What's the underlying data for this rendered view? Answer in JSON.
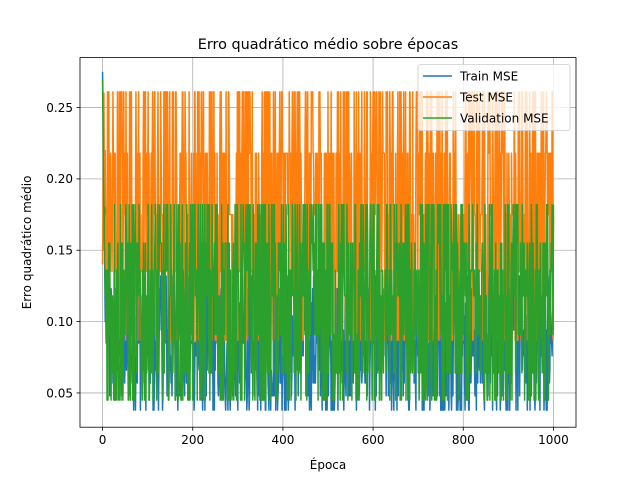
{
  "chart_data": {
    "type": "line",
    "title": "Erro quadrático médio sobre épocas",
    "xlabel": "Época",
    "ylabel": "Erro quadrático médio",
    "xlim": [
      -50,
      1050
    ],
    "ylim": [
      0.026,
      0.285
    ],
    "x_ticks": [
      0,
      200,
      400,
      600,
      800,
      1000
    ],
    "y_ticks": [
      0.05,
      0.1,
      0.15,
      0.2,
      0.25
    ],
    "grid": true,
    "legend_position": "top-right",
    "epochs": [
      0,
      1000
    ],
    "series": [
      {
        "name": "Train MSE",
        "color": "#1f77b4",
        "initial_values": [
          0.275,
          0.255,
          0.23,
          0.2,
          0.17,
          0.13,
          0.1,
          0.12,
          0.085,
          0.1
        ],
        "levels": [
          0.038,
          0.048,
          0.057,
          0.066,
          0.076,
          0.085,
          0.094,
          0.104,
          0.113,
          0.123,
          0.132
        ],
        "min": 0.038,
        "max": 0.132
      },
      {
        "name": "Test MSE",
        "color": "#ff7f0e",
        "initial_values": [
          0.14,
          0.18,
          0.22,
          0.26,
          0.2,
          0.17,
          0.22,
          0.18
        ],
        "levels": [
          0.087,
          0.135,
          0.175,
          0.218,
          0.261
        ],
        "min": 0.087,
        "max": 0.261
      },
      {
        "name": "Validation MSE",
        "color": "#2ca02c",
        "initial_values": [
          0.27,
          0.24,
          0.2,
          0.18,
          0.15,
          0.18
        ],
        "levels": [
          0.045,
          0.064,
          0.091,
          0.118,
          0.136,
          0.155,
          0.182
        ],
        "min": 0.045,
        "max": 0.182
      }
    ]
  }
}
